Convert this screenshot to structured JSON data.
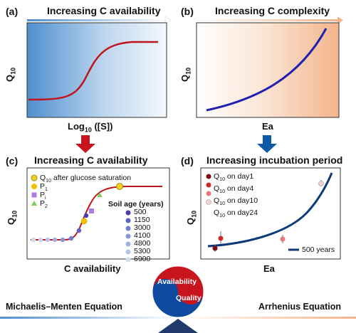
{
  "panels": {
    "a": {
      "letter": "(a)",
      "banner": "Increasing C availability",
      "ylabel": "Q10",
      "xlabel": "Log10 ([S])"
    },
    "b": {
      "letter": "(b)",
      "banner": "Increasing C complexity",
      "ylabel": "Q10",
      "xlabel": "Ea"
    },
    "c": {
      "letter": "(c)",
      "title": "Increasing C availability",
      "ylabel": "Q10",
      "xlabel": "C availability",
      "legend_markers": [
        {
          "label": "Q10 after glucose saturation",
          "color": "#f2d21b",
          "shape": "circle"
        },
        {
          "label": "P1",
          "color": "#f2c300",
          "shape": "circle"
        },
        {
          "label": "Pi",
          "color": "#a97fe0",
          "shape": "square"
        },
        {
          "label": "P2",
          "color": "#7ccf55",
          "shape": "triangle"
        }
      ],
      "soil_age_title": "Soil age (years)",
      "soil_ages": [
        {
          "label": "500",
          "color": "#4b3fb0"
        },
        {
          "label": "1150",
          "color": "#5c63c4"
        },
        {
          "label": "3000",
          "color": "#6e7fcf"
        },
        {
          "label": "4100",
          "color": "#8597d8"
        },
        {
          "label": "4800",
          "color": "#9eafe0"
        },
        {
          "label": "5300",
          "color": "#b7c4e8"
        },
        {
          "label": "6900",
          "color": "#d3dbf1"
        }
      ]
    },
    "d": {
      "letter": "(d)",
      "title": "Increasing incubation period",
      "ylabel": "Q10",
      "xlabel": "Ea",
      "legend": [
        {
          "label": "Q10 on day1",
          "color": "#7a0a10"
        },
        {
          "label": "Q10 on day4",
          "color": "#c8282e"
        },
        {
          "label": "Q10 on day10",
          "color": "#e07a7c"
        },
        {
          "label": "Q10 on day24",
          "color": "#f3d3cf"
        }
      ],
      "line_legend": "500 years"
    }
  },
  "bottom": {
    "left_equation": "Michaelis–Menten Equation",
    "right_equation": "Arrhenius Equation",
    "yin_top": "Availability",
    "yin_bottom": "Quality"
  },
  "colors": {
    "red_curve": "#c0141c",
    "blue_curve": "#1f1fb0",
    "dark_blue_curve": "#0d3a78",
    "arrow_red": "#c8141c",
    "arrow_blue": "#0f5aa8",
    "panel_b_orange": "#f3b48a",
    "panel_a_blue": "#5b97d3"
  }
}
